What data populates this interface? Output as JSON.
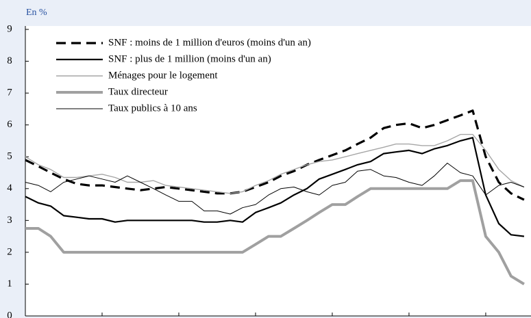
{
  "chart_data": {
    "type": "line",
    "unit_label": "En %",
    "x": [
      2003,
      2003.17,
      2003.33,
      2003.5,
      2003.67,
      2003.83,
      2004,
      2004.17,
      2004.33,
      2004.5,
      2004.67,
      2004.83,
      2005,
      2005.17,
      2005.33,
      2005.5,
      2005.67,
      2005.83,
      2006,
      2006.17,
      2006.33,
      2006.5,
      2006.67,
      2006.83,
      2007,
      2007.17,
      2007.33,
      2007.5,
      2007.67,
      2007.83,
      2008,
      2008.17,
      2008.33,
      2008.5,
      2008.67,
      2008.83,
      2009,
      2009.17,
      2009.33,
      2009.5
    ],
    "series": [
      {
        "name": "SNF : moins de 1 million d'euros (moins d'un an)",
        "color": "#000000",
        "values": [
          4.9,
          4.7,
          4.5,
          4.3,
          4.15,
          4.1,
          4.1,
          4.05,
          4.0,
          3.95,
          4.0,
          4.05,
          4.0,
          3.95,
          3.9,
          3.85,
          3.85,
          3.9,
          4.05,
          4.2,
          4.4,
          4.55,
          4.75,
          4.9,
          5.05,
          5.2,
          5.4,
          5.6,
          5.9,
          6.0,
          6.05,
          5.9,
          6.0,
          6.15,
          6.3,
          6.45,
          5.0,
          4.2,
          3.85,
          3.65
        ]
      },
      {
        "name": "SNF : plus de 1 million (moins d'un an)",
        "color": "#000000",
        "values": [
          3.75,
          3.55,
          3.45,
          3.15,
          3.1,
          3.05,
          3.05,
          2.95,
          3.0,
          3.0,
          3.0,
          3.0,
          3.0,
          3.0,
          2.95,
          2.95,
          3.0,
          2.95,
          3.25,
          3.4,
          3.55,
          3.8,
          4.0,
          4.3,
          4.45,
          4.6,
          4.75,
          4.85,
          5.1,
          5.15,
          5.2,
          5.1,
          5.25,
          5.35,
          5.5,
          5.6,
          3.8,
          2.9,
          2.55,
          2.5
        ]
      },
      {
        "name": "Ménages pour le logement",
        "color": "#a6a6a6",
        "values": [
          5.0,
          4.75,
          4.6,
          4.35,
          4.35,
          4.4,
          4.45,
          4.35,
          4.2,
          4.2,
          4.25,
          4.1,
          4.05,
          4.0,
          3.95,
          3.9,
          3.85,
          3.9,
          4.1,
          4.25,
          4.45,
          4.6,
          4.75,
          4.85,
          4.9,
          5.0,
          5.1,
          5.2,
          5.3,
          5.4,
          5.4,
          5.35,
          5.35,
          5.5,
          5.7,
          5.7,
          5.2,
          4.6,
          4.25,
          4.05
        ]
      },
      {
        "name": "Taux directeur",
        "color": "#a0a0a0",
        "values": [
          2.75,
          2.75,
          2.5,
          2.0,
          2.0,
          2.0,
          2.0,
          2.0,
          2.0,
          2.0,
          2.0,
          2.0,
          2.0,
          2.0,
          2.0,
          2.0,
          2.0,
          2.0,
          2.25,
          2.5,
          2.5,
          2.75,
          3.0,
          3.25,
          3.5,
          3.5,
          3.75,
          4.0,
          4.0,
          4.0,
          4.0,
          4.0,
          4.0,
          4.0,
          4.25,
          4.25,
          2.5,
          2.0,
          1.25,
          1.0
        ]
      },
      {
        "name": "Taux publics à 10 ans",
        "color": "#000000",
        "values": [
          4.2,
          4.1,
          3.9,
          4.2,
          4.3,
          4.4,
          4.3,
          4.2,
          4.4,
          4.2,
          4.0,
          3.8,
          3.6,
          3.6,
          3.3,
          3.3,
          3.2,
          3.4,
          3.5,
          3.8,
          4.0,
          4.05,
          3.9,
          3.8,
          4.1,
          4.2,
          4.55,
          4.6,
          4.4,
          4.35,
          4.2,
          4.1,
          4.4,
          4.8,
          4.5,
          4.4,
          3.8,
          4.1,
          4.2,
          4.05
        ]
      }
    ],
    "xlim": [
      2003,
      2009.59
    ],
    "xticks": [
      2003,
      2004,
      2005,
      2006,
      2007,
      2008,
      2009
    ],
    "ylim": [
      0,
      9
    ],
    "yticks": [
      0,
      1,
      2,
      3,
      4,
      5,
      6,
      7,
      8,
      9
    ],
    "grid": false,
    "legend": "upper left"
  }
}
